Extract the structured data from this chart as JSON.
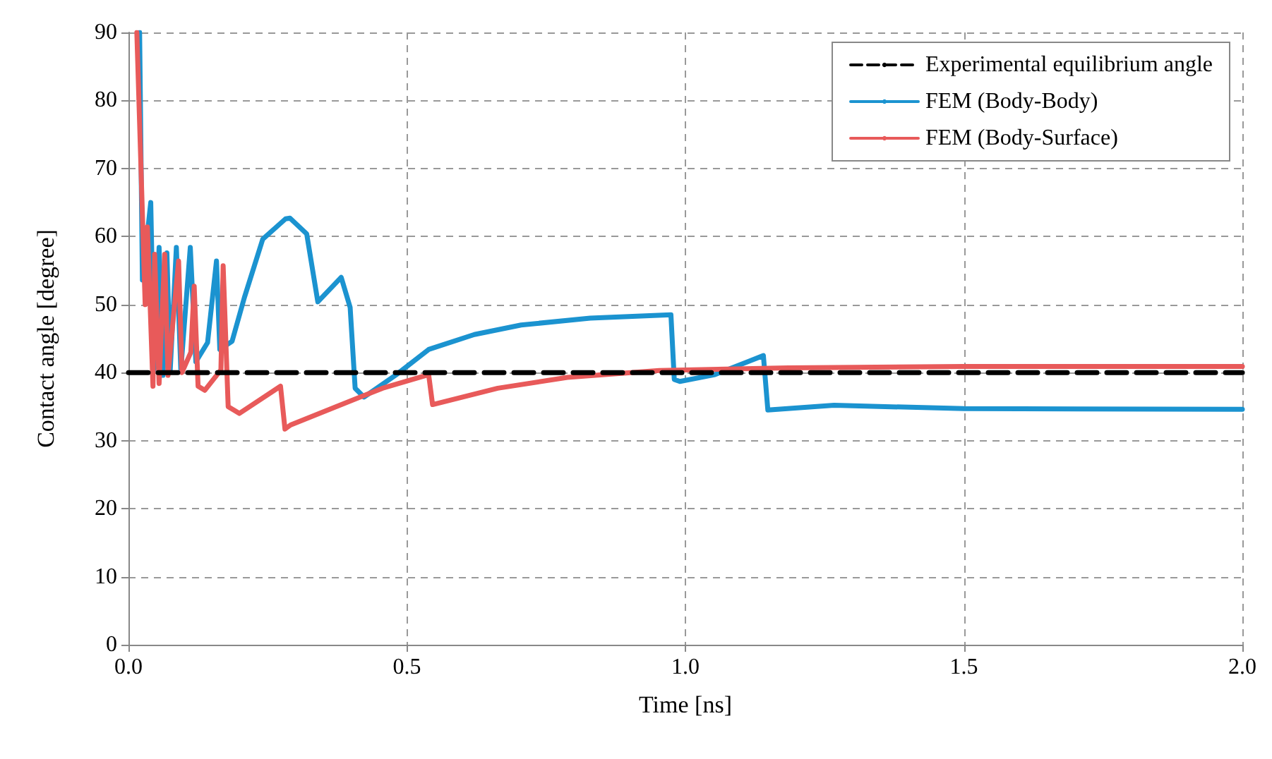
{
  "chart_data": {
    "type": "line",
    "xlabel": "Time [ns]",
    "ylabel": "Contact angle [degree]",
    "xlim": [
      0,
      2
    ],
    "xticks": [
      {
        "value": 0,
        "label": "0.0"
      },
      {
        "value": 0.5,
        "label": "0.5"
      },
      {
        "value": 1,
        "label": "1.0"
      },
      {
        "value": 1.5,
        "label": "1.5"
      },
      {
        "value": 2,
        "label": "2.0"
      }
    ],
    "ylim": [
      0,
      90
    ],
    "yticks": [
      0,
      10,
      20,
      30,
      40,
      50,
      60,
      70,
      80,
      90
    ],
    "grid": true,
    "legend": "top right",
    "marker": "none",
    "series": [
      {
        "name": "Experimental equilibrium angle",
        "color": "#000000",
        "line_style": "dashed",
        "x": [
          0,
          2
        ],
        "values": [
          40,
          40
        ]
      },
      {
        "name": "FEM (Body-Body)",
        "color": "#1b93d0",
        "line_style": "solid",
        "x": [
          0.02,
          0.025,
          0.04,
          0.046,
          0.055,
          0.062,
          0.069,
          0.075,
          0.086,
          0.094,
          0.111,
          0.121,
          0.142,
          0.158,
          0.164,
          0.186,
          0.208,
          0.241,
          0.282,
          0.29,
          0.32,
          0.34,
          0.382,
          0.398,
          0.407,
          0.423,
          0.481,
          0.539,
          0.621,
          0.705,
          0.829,
          0.974,
          0.98,
          0.99,
          1.053,
          1.14,
          1.148,
          1.267,
          1.5,
          2.0
        ],
        "values": [
          90,
          53.6,
          65,
          40.4,
          58.4,
          39.6,
          57.6,
          40.4,
          58.4,
          40.4,
          58.4,
          41.6,
          44.4,
          56.4,
          43.4,
          44.6,
          51,
          59.6,
          62.6,
          62.7,
          60.4,
          50.4,
          54,
          49.6,
          37.7,
          36.4,
          39.7,
          43.4,
          45.6,
          47,
          48,
          48.5,
          39,
          38.7,
          39.7,
          42.5,
          34.5,
          35.2,
          34.7,
          34.6
        ]
      },
      {
        "name": "FEM (Body-Surface)",
        "color": "#e85a5a",
        "line_style": "solid",
        "x": [
          0.015,
          0.03,
          0.034,
          0.044,
          0.047,
          0.055,
          0.065,
          0.071,
          0.09,
          0.096,
          0.112,
          0.118,
          0.125,
          0.137,
          0.166,
          0.17,
          0.179,
          0.199,
          0.273,
          0.281,
          0.291,
          0.373,
          0.456,
          0.539,
          0.546,
          0.663,
          0.788,
          0.953,
          1.185,
          1.5,
          2.0
        ],
        "values": [
          90,
          50,
          61.4,
          38,
          57.4,
          38.4,
          57.4,
          39.6,
          56.4,
          40,
          43,
          52.7,
          38,
          37.4,
          40.4,
          55.7,
          35,
          34,
          38,
          31.7,
          32.3,
          35,
          37.7,
          39.7,
          35.3,
          37.7,
          39.3,
          40.3,
          40.7,
          40.9,
          40.9
        ]
      }
    ]
  }
}
